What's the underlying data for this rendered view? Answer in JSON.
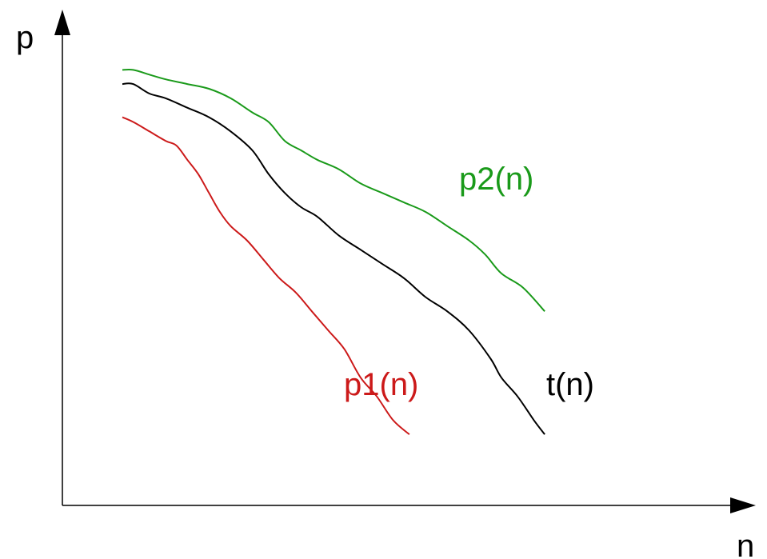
{
  "chart_data": {
    "type": "line",
    "title": "",
    "xlabel": "n",
    "ylabel": "p",
    "xlim": [
      0,
      100
    ],
    "ylim": [
      0,
      100
    ],
    "grid": false,
    "legend": "none",
    "axis_color": "#000000",
    "series": [
      {
        "name": "p2(n)",
        "color": "#1a9a1a",
        "x": [
          0,
          2,
          5,
          8,
          12,
          16,
          20,
          24,
          27,
          30,
          33,
          36,
          40,
          44,
          48,
          52,
          56,
          60,
          64,
          67,
          70,
          74,
          78
        ],
        "y": [
          92,
          92,
          91,
          90,
          89,
          88,
          86,
          83,
          81,
          77,
          75,
          73,
          71,
          68,
          66,
          64,
          62,
          59,
          56,
          53,
          49,
          46,
          41
        ]
      },
      {
        "name": "t(n)",
        "color": "#000000",
        "x": [
          0,
          2,
          5,
          8,
          12,
          16,
          20,
          24,
          27,
          30,
          33,
          36,
          40,
          44,
          48,
          52,
          56,
          60,
          64,
          68,
          70,
          73,
          76,
          78
        ],
        "y": [
          89,
          89,
          87,
          86,
          84,
          82,
          79,
          75,
          70,
          66,
          63,
          61,
          57,
          54,
          51,
          48,
          44,
          41,
          37,
          31,
          27,
          23,
          18,
          15
        ]
      },
      {
        "name": "p1(n)",
        "color": "#cc1a1a",
        "x": [
          0,
          2,
          5,
          8,
          10,
          12,
          14,
          16,
          18,
          20,
          23,
          26,
          29,
          32,
          35,
          38,
          41,
          44,
          47,
          50,
          53
        ],
        "y": [
          82,
          81,
          79,
          77,
          76,
          73,
          70,
          66,
          62,
          59,
          56,
          52,
          48,
          45,
          41,
          37,
          33,
          27,
          23,
          18,
          15
        ]
      }
    ]
  }
}
